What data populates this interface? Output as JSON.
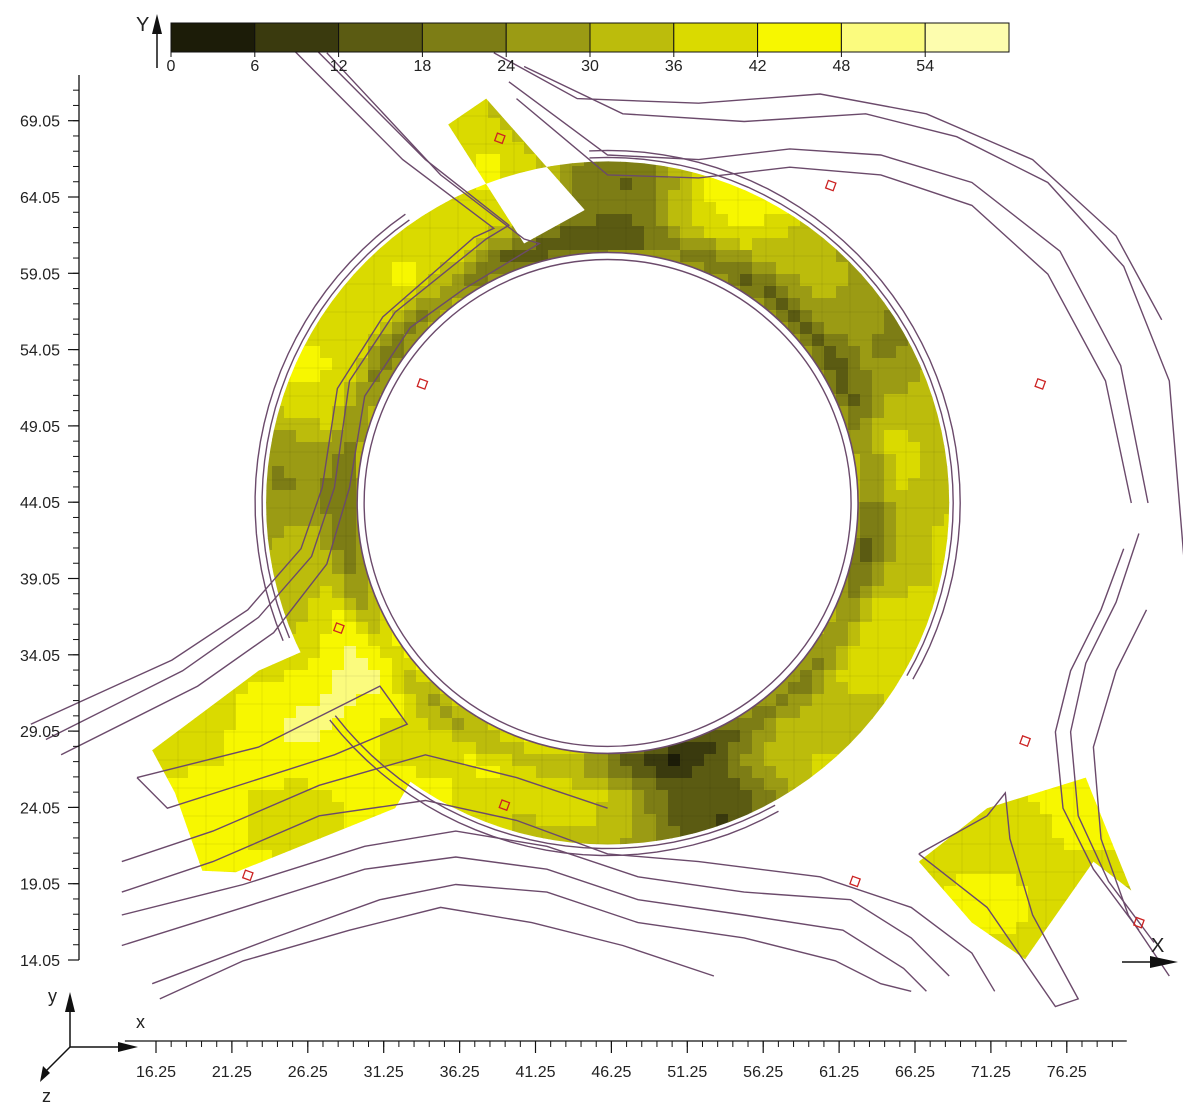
{
  "chart_data": {
    "type": "heatmap",
    "title": "",
    "colorbar": {
      "axis_label": "Y",
      "tick_labels": [
        "0",
        "6",
        "12",
        "18",
        "24",
        "30",
        "36",
        "42",
        "48",
        "54"
      ],
      "levels": [
        0,
        6,
        12,
        18,
        24,
        30,
        36,
        42,
        48,
        54,
        60
      ],
      "colors": [
        "#1c1c08",
        "#3a3a0e",
        "#5b5b12",
        "#7d7d15",
        "#9b9b14",
        "#bcbc0c",
        "#dada00",
        "#f7f700",
        "#fbfb7e",
        "#fdfdae"
      ]
    },
    "x_axis": {
      "label": "X",
      "ticks": [
        "16.25",
        "21.25",
        "26.25",
        "31.25",
        "36.25",
        "41.25",
        "46.25",
        "51.25",
        "56.25",
        "61.25",
        "66.25",
        "71.25",
        "76.25"
      ],
      "range": [
        14.2,
        80.2
      ]
    },
    "y_axis": {
      "label": "Y",
      "ticks": [
        "14.05",
        "19.05",
        "24.05",
        "29.05",
        "34.05",
        "39.05",
        "44.05",
        "49.05",
        "54.05",
        "59.05",
        "64.05",
        "69.05"
      ],
      "range": [
        14.05,
        71.7
      ]
    },
    "roundabout": {
      "center": [
        46.0,
        44.0
      ],
      "inner_radius": 16.5,
      "outer_radius": 22.5,
      "entries": [
        {
          "name": "north-west entry",
          "angle_deg": 122
        },
        {
          "name": "south-west entry",
          "angle_deg": 208
        },
        {
          "name": "south-east exit",
          "angle_deg": 322
        }
      ]
    },
    "field_samples": [
      {
        "x": 46.0,
        "y": 64.5,
        "value": 20
      },
      {
        "x": 54.5,
        "y": 64.8,
        "value": 44
      },
      {
        "x": 67.5,
        "y": 60.5,
        "value": 14
      },
      {
        "x": 74.8,
        "y": 50.0,
        "value": 42
      },
      {
        "x": 77.0,
        "y": 40.0,
        "value": 30
      },
      {
        "x": 73.0,
        "y": 29.0,
        "value": 46
      },
      {
        "x": 63.0,
        "y": 23.0,
        "value": 44
      },
      {
        "x": 52.0,
        "y": 24.0,
        "value": 12
      },
      {
        "x": 41.5,
        "y": 27.0,
        "value": 44
      },
      {
        "x": 30.0,
        "y": 33.0,
        "value": 50
      },
      {
        "x": 23.0,
        "y": 24.0,
        "value": 44
      },
      {
        "x": 28.5,
        "y": 52.0,
        "value": 40
      },
      {
        "x": 24.5,
        "y": 43.0,
        "value": 24
      },
      {
        "x": 36.0,
        "y": 66.5,
        "value": 42
      }
    ],
    "triad": {
      "x": "x",
      "y": "y",
      "z": "z"
    }
  }
}
